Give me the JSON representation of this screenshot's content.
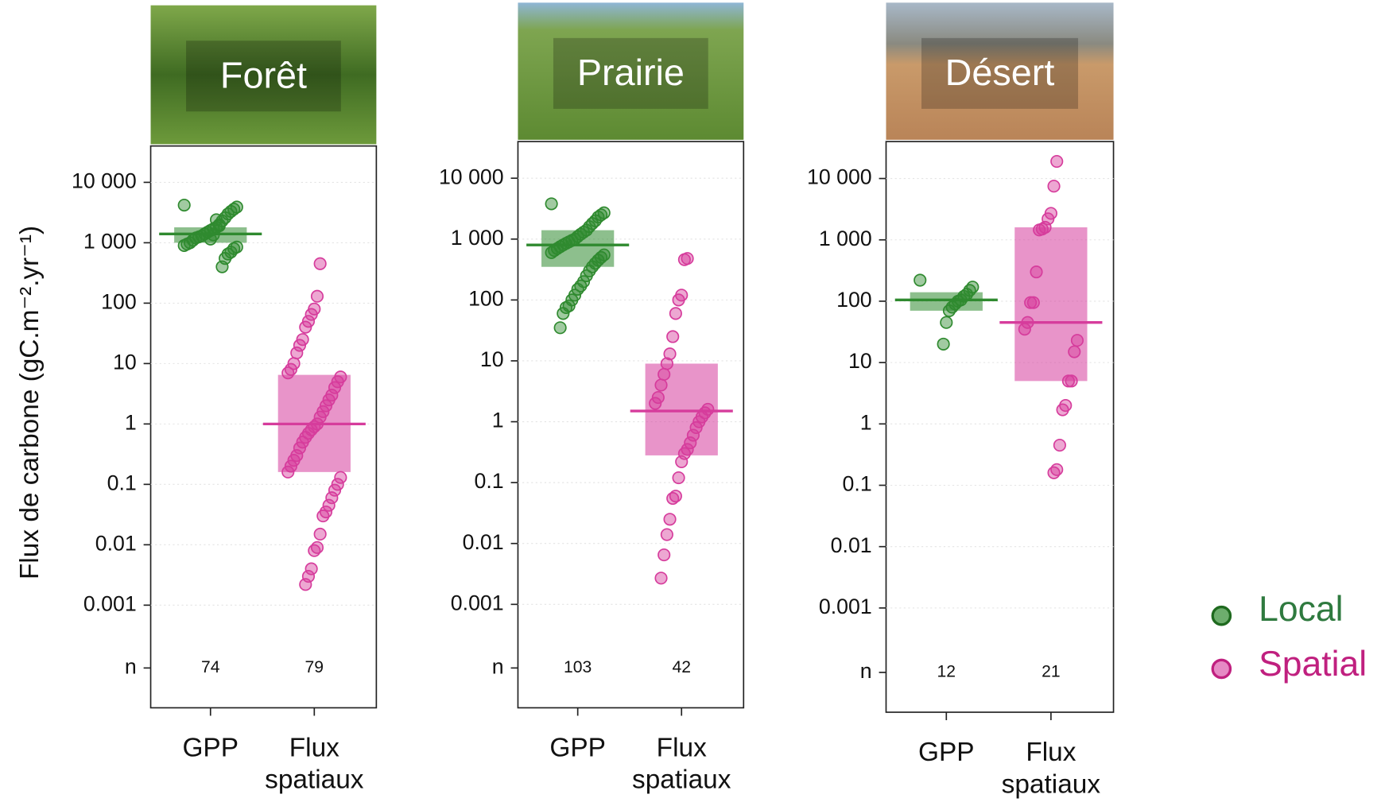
{
  "chart_data": [
    {
      "type": "strip",
      "title": "Forêt",
      "y_label": "Flux de carbone  (gC.m⁻².yr⁻¹)",
      "log_scale": true,
      "grid": true,
      "categories": [
        "GPP",
        "Flux spatiaux"
      ],
      "n_label": "n",
      "n": [
        74,
        79
      ],
      "ylim": [
        2e-05,
        40000
      ],
      "yticks": [
        {
          "value": 10000,
          "label": "10 000"
        },
        {
          "value": 1000,
          "label": "1 000"
        },
        100,
        10,
        1,
        0.1,
        0.01,
        0.001
      ],
      "series": [
        {
          "name": "Local",
          "color": "#2f8a2f",
          "box_low": 1000,
          "median": 1400,
          "box_high": 1800,
          "values": [
            4200,
            3900,
            3600,
            3300,
            3000,
            2600,
            2300,
            2000,
            1800,
            1700,
            1600,
            1500,
            1400,
            1300,
            1250,
            1200,
            1100,
            1000,
            950,
            900,
            850,
            800,
            700,
            650,
            550,
            400,
            1900,
            2400,
            1350,
            1150
          ]
        },
        {
          "name": "Spatial",
          "color": "#d63c9c",
          "box_low": 0.16,
          "median": 1,
          "box_high": 6.5,
          "values": [
            450,
            130,
            80,
            65,
            50,
            40,
            25,
            20,
            15,
            10,
            8,
            7,
            6,
            5,
            4,
            3,
            2.5,
            2,
            1.6,
            1.3,
            1,
            0.9,
            0.8,
            0.7,
            0.6,
            0.5,
            0.4,
            0.3,
            0.25,
            0.2,
            0.16,
            0.13,
            0.1,
            0.08,
            0.06,
            0.045,
            0.035,
            0.03,
            0.015,
            0.009,
            0.008,
            0.004,
            0.003,
            0.0022
          ]
        }
      ]
    },
    {
      "type": "strip",
      "title": "Prairie",
      "log_scale": true,
      "grid": true,
      "categories": [
        "GPP",
        "Flux spatiaux"
      ],
      "n_label": "n",
      "n": [
        103,
        42
      ],
      "ylim": [
        2e-05,
        40000
      ],
      "yticks": [
        {
          "value": 10000,
          "label": "10 000"
        },
        {
          "value": 1000,
          "label": "1 000"
        },
        100,
        10,
        1,
        0.1,
        0.01,
        0.001
      ],
      "series": [
        {
          "name": "Local",
          "color": "#2f8a2f",
          "box_low": 350,
          "median": 800,
          "box_high": 1400,
          "values": [
            3800,
            2700,
            2500,
            2300,
            2000,
            1800,
            1600,
            1400,
            1300,
            1200,
            1100,
            1000,
            950,
            900,
            850,
            800,
            750,
            700,
            650,
            600,
            550,
            500,
            450,
            400,
            350,
            300,
            250,
            200,
            170,
            150,
            120,
            100,
            80,
            75,
            60,
            35
          ]
        },
        {
          "name": "Spatial",
          "color": "#d63c9c",
          "box_low": 0.28,
          "median": 1.5,
          "box_high": 9,
          "values": [
            480,
            460,
            120,
            100,
            60,
            25,
            13,
            9,
            6,
            4,
            2.5,
            2,
            1.6,
            1.4,
            1.2,
            1,
            0.8,
            0.6,
            0.45,
            0.35,
            0.3,
            0.22,
            0.12,
            0.06,
            0.055,
            0.025,
            0.014,
            0.0065,
            0.0027
          ]
        }
      ]
    },
    {
      "type": "strip",
      "title": "Désert",
      "log_scale": true,
      "grid": true,
      "categories": [
        "GPP",
        "Flux spatiaux"
      ],
      "n_label": "n",
      "n": [
        12,
        21
      ],
      "ylim": [
        2e-05,
        40000
      ],
      "yticks": [
        {
          "value": 10000,
          "label": "10 000"
        },
        {
          "value": 1000,
          "label": "1 000"
        },
        100,
        10,
        1,
        0.1,
        0.01,
        0.001
      ],
      "series": [
        {
          "name": "Local",
          "color": "#2f8a2f",
          "box_low": 70,
          "median": 105,
          "box_high": 140,
          "values": [
            220,
            170,
            150,
            130,
            120,
            105,
            100,
            90,
            80,
            70,
            45,
            20
          ]
        },
        {
          "name": "Spatial",
          "color": "#d63c9c",
          "box_low": 5,
          "median": 45,
          "box_high": 1600,
          "values": [
            19000,
            7500,
            2700,
            2200,
            1600,
            1500,
            1450,
            300,
            95,
            95,
            45,
            35,
            23,
            15,
            5,
            5,
            2,
            1.7,
            0.45,
            0.18,
            0.16
          ]
        }
      ]
    }
  ]
}
